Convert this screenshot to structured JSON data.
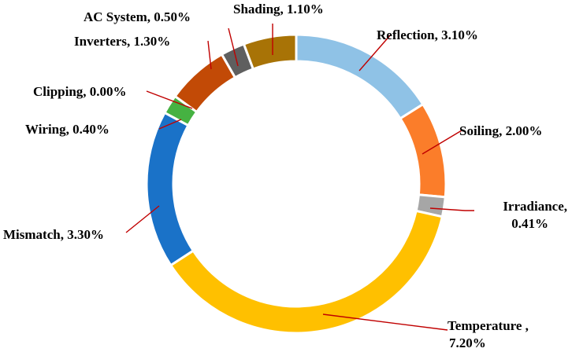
{
  "chart_data": {
    "type": "pie",
    "variant": "doughnut",
    "title": "",
    "slices": [
      {
        "name": "Reflection",
        "value": 3.1,
        "label": "Reflection, 3.10%",
        "color": "#8fc2e6"
      },
      {
        "name": "Soiling",
        "value": 2.0,
        "label": "Soiling, 2.00%",
        "color": "#fb7d2a"
      },
      {
        "name": "Irradiance",
        "value": 0.41,
        "label": "Irradiance,|0.41%",
        "color": "#a6a6a6"
      },
      {
        "name": "Temperature",
        "value": 7.2,
        "label": "Temperature ,|7.20%",
        "color": "#ffc000"
      },
      {
        "name": "Mismatch",
        "value": 3.3,
        "label": "Mismatch, 3.30%",
        "color": "#1a72c8"
      },
      {
        "name": "Wiring",
        "value": 0.4,
        "label": "Wiring, 0.40%",
        "color": "#46b242"
      },
      {
        "name": "Clipping",
        "value": 0.0,
        "label": "Clipping, 0.00%",
        "color": "#ff3b3b"
      },
      {
        "name": "Inverters",
        "value": 1.3,
        "label": "Inverters, 1.30%",
        "color": "#c24a06"
      },
      {
        "name": "AC System",
        "value": 0.5,
        "label": "AC System, 0.50%",
        "color": "#5f5f5f"
      },
      {
        "name": "Shading",
        "value": 1.1,
        "label": "Shading, 1.10%",
        "color": "#a87306"
      }
    ],
    "legend": "none",
    "data_labels": "outside-with-leader-lines"
  }
}
